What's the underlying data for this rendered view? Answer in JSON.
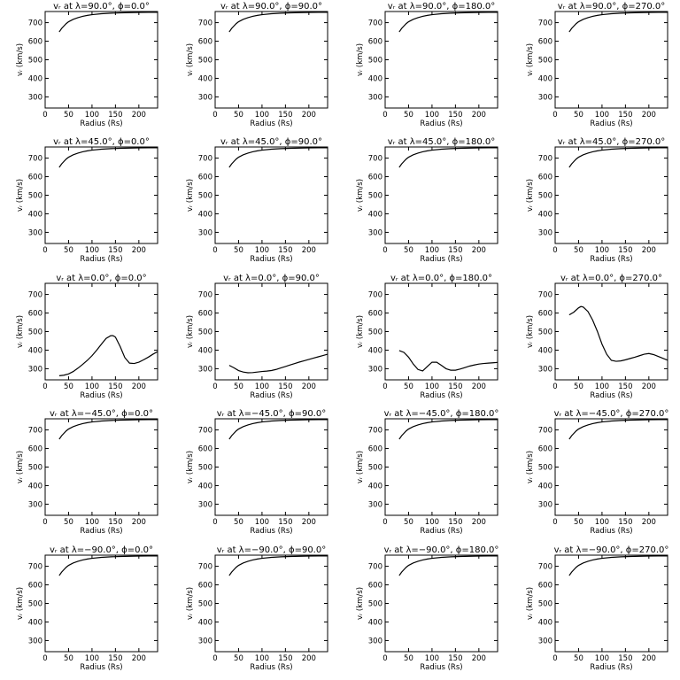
{
  "figure": {
    "xlabel": "Radius (Rs)",
    "ylabel": "vᵣ (km/s)",
    "xlim": [
      0,
      240
    ],
    "ylim": [
      240,
      760
    ],
    "xticks": [
      0,
      50,
      100,
      150,
      200
    ],
    "yticks": [
      300,
      400,
      500,
      600,
      700
    ]
  },
  "chart_data": [
    {
      "type": "line",
      "title": "vᵣ at λ=90.0°, ϕ=0.0°",
      "xlabel": "Radius (Rs)",
      "ylabel": "vᵣ (km/s)",
      "xlim": [
        0,
        240
      ],
      "ylim": [
        240,
        760
      ],
      "series": [
        {
          "x": [
            30,
            35,
            40,
            45,
            50,
            60,
            70,
            80,
            90,
            100,
            120,
            140,
            160,
            180,
            200,
            220,
            240
          ],
          "y": [
            650,
            668,
            682,
            695,
            705,
            718,
            727,
            734,
            739,
            743,
            748,
            751,
            753,
            754,
            755,
            756,
            756
          ]
        }
      ]
    },
    {
      "type": "line",
      "title": "vᵣ at λ=90.0°, ϕ=90.0°",
      "xlabel": "Radius (Rs)",
      "ylabel": "vᵣ (km/s)",
      "xlim": [
        0,
        240
      ],
      "ylim": [
        240,
        760
      ],
      "series": [
        {
          "x": [
            30,
            35,
            40,
            45,
            50,
            60,
            70,
            80,
            90,
            100,
            120,
            140,
            160,
            180,
            200,
            220,
            240
          ],
          "y": [
            650,
            668,
            682,
            695,
            705,
            718,
            727,
            734,
            739,
            743,
            748,
            751,
            753,
            754,
            755,
            756,
            756
          ]
        }
      ]
    },
    {
      "type": "line",
      "title": "vᵣ at λ=90.0°, ϕ=180.0°",
      "xlabel": "Radius (Rs)",
      "ylabel": "vᵣ (km/s)",
      "xlim": [
        0,
        240
      ],
      "ylim": [
        240,
        760
      ],
      "series": [
        {
          "x": [
            30,
            35,
            40,
            45,
            50,
            60,
            70,
            80,
            90,
            100,
            120,
            140,
            160,
            180,
            200,
            220,
            240
          ],
          "y": [
            650,
            668,
            682,
            695,
            705,
            718,
            727,
            734,
            739,
            743,
            748,
            751,
            753,
            754,
            755,
            756,
            756
          ]
        }
      ]
    },
    {
      "type": "line",
      "title": "vᵣ at λ=90.0°, ϕ=270.0°",
      "xlabel": "Radius (Rs)",
      "ylabel": "vᵣ (km/s)",
      "xlim": [
        0,
        240
      ],
      "ylim": [
        240,
        760
      ],
      "series": [
        {
          "x": [
            30,
            35,
            40,
            45,
            50,
            60,
            70,
            80,
            90,
            100,
            120,
            140,
            160,
            180,
            200,
            220,
            240
          ],
          "y": [
            650,
            668,
            682,
            695,
            705,
            718,
            727,
            734,
            739,
            743,
            748,
            751,
            753,
            754,
            755,
            756,
            756
          ]
        }
      ]
    },
    {
      "type": "line",
      "title": "vᵣ at λ=45.0°, ϕ=0.0°",
      "xlabel": "Radius (Rs)",
      "ylabel": "vᵣ (km/s)",
      "xlim": [
        0,
        240
      ],
      "ylim": [
        240,
        760
      ],
      "series": [
        {
          "x": [
            30,
            35,
            40,
            45,
            50,
            60,
            70,
            80,
            90,
            100,
            120,
            140,
            160,
            180,
            200,
            220,
            240
          ],
          "y": [
            650,
            668,
            682,
            695,
            705,
            718,
            727,
            734,
            739,
            743,
            748,
            751,
            753,
            754,
            755,
            756,
            756
          ]
        }
      ]
    },
    {
      "type": "line",
      "title": "vᵣ at λ=45.0°, ϕ=90.0°",
      "xlabel": "Radius (Rs)",
      "ylabel": "vᵣ (km/s)",
      "xlim": [
        0,
        240
      ],
      "ylim": [
        240,
        760
      ],
      "series": [
        {
          "x": [
            30,
            35,
            40,
            45,
            50,
            60,
            70,
            80,
            90,
            100,
            120,
            140,
            160,
            180,
            200,
            220,
            240
          ],
          "y": [
            650,
            668,
            682,
            695,
            705,
            718,
            727,
            734,
            739,
            743,
            748,
            751,
            753,
            754,
            755,
            756,
            756
          ]
        }
      ]
    },
    {
      "type": "line",
      "title": "vᵣ at λ=45.0°, ϕ=180.0°",
      "xlabel": "Radius (Rs)",
      "ylabel": "vᵣ (km/s)",
      "xlim": [
        0,
        240
      ],
      "ylim": [
        240,
        760
      ],
      "series": [
        {
          "x": [
            30,
            35,
            40,
            45,
            50,
            60,
            70,
            80,
            90,
            100,
            120,
            140,
            160,
            180,
            200,
            220,
            240
          ],
          "y": [
            650,
            668,
            682,
            695,
            705,
            718,
            727,
            734,
            739,
            743,
            748,
            751,
            753,
            754,
            755,
            756,
            756
          ]
        }
      ]
    },
    {
      "type": "line",
      "title": "vᵣ at λ=45.0°, ϕ=270.0°",
      "xlabel": "Radius (Rs)",
      "ylabel": "vᵣ (km/s)",
      "xlim": [
        0,
        240
      ],
      "ylim": [
        240,
        760
      ],
      "series": [
        {
          "x": [
            30,
            35,
            40,
            45,
            50,
            60,
            70,
            80,
            90,
            100,
            120,
            140,
            160,
            180,
            200,
            220,
            240
          ],
          "y": [
            650,
            668,
            682,
            695,
            705,
            718,
            727,
            734,
            739,
            743,
            748,
            751,
            753,
            754,
            755,
            756,
            756
          ]
        }
      ]
    },
    {
      "type": "line",
      "title": "vᵣ at λ=0.0°, ϕ=0.0°",
      "xlabel": "Radius (Rs)",
      "ylabel": "vᵣ (km/s)",
      "xlim": [
        0,
        240
      ],
      "ylim": [
        240,
        760
      ],
      "series": [
        {
          "x": [
            30,
            40,
            50,
            60,
            70,
            80,
            90,
            100,
            110,
            120,
            130,
            140,
            145,
            150,
            160,
            170,
            180,
            190,
            200,
            210,
            220,
            230,
            240
          ],
          "y": [
            262,
            265,
            272,
            285,
            303,
            323,
            345,
            370,
            400,
            432,
            463,
            478,
            478,
            470,
            420,
            360,
            330,
            328,
            335,
            348,
            362,
            378,
            392
          ]
        }
      ]
    },
    {
      "type": "line",
      "title": "vᵣ at λ=0.0°, ϕ=90.0°",
      "xlabel": "Radius (Rs)",
      "ylabel": "vᵣ (km/s)",
      "xlim": [
        0,
        240
      ],
      "ylim": [
        240,
        760
      ],
      "series": [
        {
          "x": [
            30,
            40,
            50,
            60,
            70,
            80,
            90,
            100,
            110,
            120,
            130,
            140,
            150,
            160,
            170,
            180,
            190,
            200,
            210,
            220,
            230,
            240
          ],
          "y": [
            318,
            305,
            290,
            282,
            278,
            279,
            282,
            285,
            287,
            290,
            296,
            304,
            312,
            320,
            328,
            336,
            343,
            350,
            357,
            364,
            371,
            378
          ]
        }
      ]
    },
    {
      "type": "line",
      "title": "vᵣ at λ=0.0°, ϕ=180.0°",
      "xlabel": "Radius (Rs)",
      "ylabel": "vᵣ (km/s)",
      "xlim": [
        0,
        240
      ],
      "ylim": [
        240,
        760
      ],
      "series": [
        {
          "x": [
            30,
            40,
            50,
            60,
            70,
            80,
            90,
            100,
            110,
            120,
            130,
            140,
            150,
            160,
            170,
            180,
            190,
            200,
            210,
            220,
            230,
            240
          ],
          "y": [
            398,
            388,
            362,
            325,
            296,
            288,
            312,
            335,
            335,
            318,
            300,
            292,
            292,
            298,
            306,
            314,
            320,
            325,
            328,
            330,
            332,
            334
          ]
        }
      ]
    },
    {
      "type": "line",
      "title": "vᵣ at λ=0.0°, ϕ=270.0°",
      "xlabel": "Radius (Rs)",
      "ylabel": "vᵣ (km/s)",
      "xlim": [
        0,
        240
      ],
      "ylim": [
        240,
        760
      ],
      "series": [
        {
          "x": [
            30,
            40,
            50,
            55,
            60,
            70,
            80,
            90,
            100,
            110,
            120,
            130,
            140,
            150,
            160,
            170,
            180,
            190,
            200,
            210,
            220,
            230,
            240
          ],
          "y": [
            590,
            605,
            628,
            635,
            632,
            608,
            562,
            502,
            432,
            378,
            345,
            340,
            342,
            348,
            355,
            362,
            370,
            378,
            382,
            376,
            366,
            356,
            346
          ]
        }
      ]
    },
    {
      "type": "line",
      "title": "vᵣ at λ=−45.0°, ϕ=0.0°",
      "xlabel": "Radius (Rs)",
      "ylabel": "vᵣ (km/s)",
      "xlim": [
        0,
        240
      ],
      "ylim": [
        240,
        760
      ],
      "series": [
        {
          "x": [
            30,
            35,
            40,
            45,
            50,
            60,
            70,
            80,
            90,
            100,
            120,
            140,
            160,
            180,
            200,
            220,
            240
          ],
          "y": [
            650,
            668,
            682,
            695,
            705,
            718,
            727,
            734,
            739,
            743,
            748,
            751,
            753,
            754,
            755,
            756,
            756
          ]
        }
      ]
    },
    {
      "type": "line",
      "title": "vᵣ at λ=−45.0°, ϕ=90.0°",
      "xlabel": "Radius (Rs)",
      "ylabel": "vᵣ (km/s)",
      "xlim": [
        0,
        240
      ],
      "ylim": [
        240,
        760
      ],
      "series": [
        {
          "x": [
            30,
            35,
            40,
            45,
            50,
            60,
            70,
            80,
            90,
            100,
            120,
            140,
            160,
            180,
            200,
            220,
            240
          ],
          "y": [
            650,
            668,
            682,
            695,
            705,
            718,
            727,
            734,
            739,
            743,
            748,
            751,
            753,
            754,
            755,
            756,
            756
          ]
        }
      ]
    },
    {
      "type": "line",
      "title": "vᵣ at λ=−45.0°, ϕ=180.0°",
      "xlabel": "Radius (Rs)",
      "ylabel": "vᵣ (km/s)",
      "xlim": [
        0,
        240
      ],
      "ylim": [
        240,
        760
      ],
      "series": [
        {
          "x": [
            30,
            35,
            40,
            45,
            50,
            60,
            70,
            80,
            90,
            100,
            120,
            140,
            160,
            180,
            200,
            220,
            240
          ],
          "y": [
            650,
            668,
            682,
            695,
            705,
            718,
            727,
            734,
            739,
            743,
            748,
            751,
            753,
            754,
            755,
            756,
            756
          ]
        }
      ]
    },
    {
      "type": "line",
      "title": "vᵣ at λ=−45.0°, ϕ=270.0°",
      "xlabel": "Radius (Rs)",
      "ylabel": "vᵣ (km/s)",
      "xlim": [
        0,
        240
      ],
      "ylim": [
        240,
        760
      ],
      "series": [
        {
          "x": [
            30,
            35,
            40,
            45,
            50,
            60,
            70,
            80,
            90,
            100,
            120,
            140,
            160,
            180,
            200,
            220,
            240
          ],
          "y": [
            650,
            668,
            682,
            695,
            705,
            718,
            727,
            734,
            739,
            743,
            748,
            751,
            753,
            754,
            755,
            756,
            756
          ]
        }
      ]
    },
    {
      "type": "line",
      "title": "vᵣ at λ=−90.0°, ϕ=0.0°",
      "xlabel": "Radius (Rs)",
      "ylabel": "vᵣ (km/s)",
      "xlim": [
        0,
        240
      ],
      "ylim": [
        240,
        760
      ],
      "series": [
        {
          "x": [
            30,
            35,
            40,
            45,
            50,
            60,
            70,
            80,
            90,
            100,
            120,
            140,
            160,
            180,
            200,
            220,
            240
          ],
          "y": [
            650,
            668,
            682,
            695,
            705,
            718,
            727,
            734,
            739,
            743,
            748,
            751,
            753,
            754,
            755,
            756,
            756
          ]
        }
      ]
    },
    {
      "type": "line",
      "title": "vᵣ at λ=−90.0°, ϕ=90.0°",
      "xlabel": "Radius (Rs)",
      "ylabel": "vᵣ (km/s)",
      "xlim": [
        0,
        240
      ],
      "ylim": [
        240,
        760
      ],
      "series": [
        {
          "x": [
            30,
            35,
            40,
            45,
            50,
            60,
            70,
            80,
            90,
            100,
            120,
            140,
            160,
            180,
            200,
            220,
            240
          ],
          "y": [
            650,
            668,
            682,
            695,
            705,
            718,
            727,
            734,
            739,
            743,
            748,
            751,
            753,
            754,
            755,
            756,
            756
          ]
        }
      ]
    },
    {
      "type": "line",
      "title": "vᵣ at λ=−90.0°, ϕ=180.0°",
      "xlabel": "Radius (Rs)",
      "ylabel": "vᵣ (km/s)",
      "xlim": [
        0,
        240
      ],
      "ylim": [
        240,
        760
      ],
      "series": [
        {
          "x": [
            30,
            35,
            40,
            45,
            50,
            60,
            70,
            80,
            90,
            100,
            120,
            140,
            160,
            180,
            200,
            220,
            240
          ],
          "y": [
            650,
            668,
            682,
            695,
            705,
            718,
            727,
            734,
            739,
            743,
            748,
            751,
            753,
            754,
            755,
            756,
            756
          ]
        }
      ]
    },
    {
      "type": "line",
      "title": "vᵣ at λ=−90.0°, ϕ=270.0°",
      "xlabel": "Radius (Rs)",
      "ylabel": "vᵣ (km/s)",
      "xlim": [
        0,
        240
      ],
      "ylim": [
        240,
        760
      ],
      "series": [
        {
          "x": [
            30,
            35,
            40,
            45,
            50,
            60,
            70,
            80,
            90,
            100,
            120,
            140,
            160,
            180,
            200,
            220,
            240
          ],
          "y": [
            650,
            668,
            682,
            695,
            705,
            718,
            727,
            734,
            739,
            743,
            748,
            751,
            753,
            754,
            755,
            756,
            756
          ]
        }
      ]
    }
  ]
}
